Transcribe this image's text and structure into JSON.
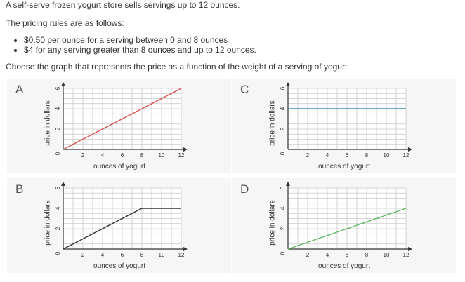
{
  "question": {
    "line1": "A self-serve frozen yogurt store sells servings up to 12 ounces.",
    "line2": "The pricing rules are as follows:",
    "rules": [
      "$0.50 per ounce for a serving between 0 and 8 ounces",
      "$4 for any serving greater than 8 ounces and up to 12 ounces."
    ],
    "prompt": "Choose the graph that represents the price as a function of the weight of a serving of yogurt."
  },
  "chart_data": [
    {
      "type": "line",
      "choice": "A",
      "xlabel": "ounces of yogurt",
      "ylabel": "price in dollars",
      "xlim": [
        0,
        12
      ],
      "ylim": [
        0,
        6
      ],
      "grid": true,
      "x_ticks": [
        "2",
        "4",
        "6",
        "8",
        "10",
        "12"
      ],
      "y_ticks": [
        "2",
        "4",
        "6"
      ],
      "origin_label": "0",
      "series": [
        {
          "x": [
            0,
            12
          ],
          "y": [
            0,
            6
          ],
          "color": "#d9534f"
        }
      ]
    },
    {
      "type": "line",
      "choice": "B",
      "xlabel": "ounces of yogurt",
      "ylabel": "price in dollars",
      "xlim": [
        0,
        12
      ],
      "ylim": [
        0,
        6
      ],
      "grid": true,
      "x_ticks": [
        "2",
        "4",
        "6",
        "8",
        "10",
        "12"
      ],
      "y_ticks": [
        "2",
        "4",
        "6"
      ],
      "origin_label": "0",
      "series": [
        {
          "x": [
            0,
            8,
            12
          ],
          "y": [
            0,
            4,
            4
          ],
          "color": "#333333"
        }
      ]
    },
    {
      "type": "line",
      "choice": "C",
      "xlabel": "ounces of yogurt",
      "ylabel": "price in dollars",
      "xlim": [
        0,
        12
      ],
      "ylim": [
        0,
        6
      ],
      "grid": true,
      "x_ticks": [
        "2",
        "4",
        "6",
        "8",
        "10",
        "12"
      ],
      "y_ticks": [
        "2",
        "4",
        "6"
      ],
      "origin_label": "0",
      "series": [
        {
          "x": [
            0,
            12
          ],
          "y": [
            4,
            4
          ],
          "color": "#3a8fb7"
        }
      ]
    },
    {
      "type": "line",
      "choice": "D",
      "xlabel": "ounces of yogurt",
      "ylabel": "price in dollars",
      "xlim": [
        0,
        12
      ],
      "ylim": [
        0,
        6
      ],
      "grid": true,
      "x_ticks": [
        "2",
        "4",
        "6",
        "8",
        "10",
        "12"
      ],
      "y_ticks": [
        "2",
        "4",
        "6"
      ],
      "origin_label": "0",
      "series": [
        {
          "x": [
            0,
            12
          ],
          "y": [
            0,
            4
          ],
          "color": "#5cb85c"
        }
      ]
    }
  ]
}
